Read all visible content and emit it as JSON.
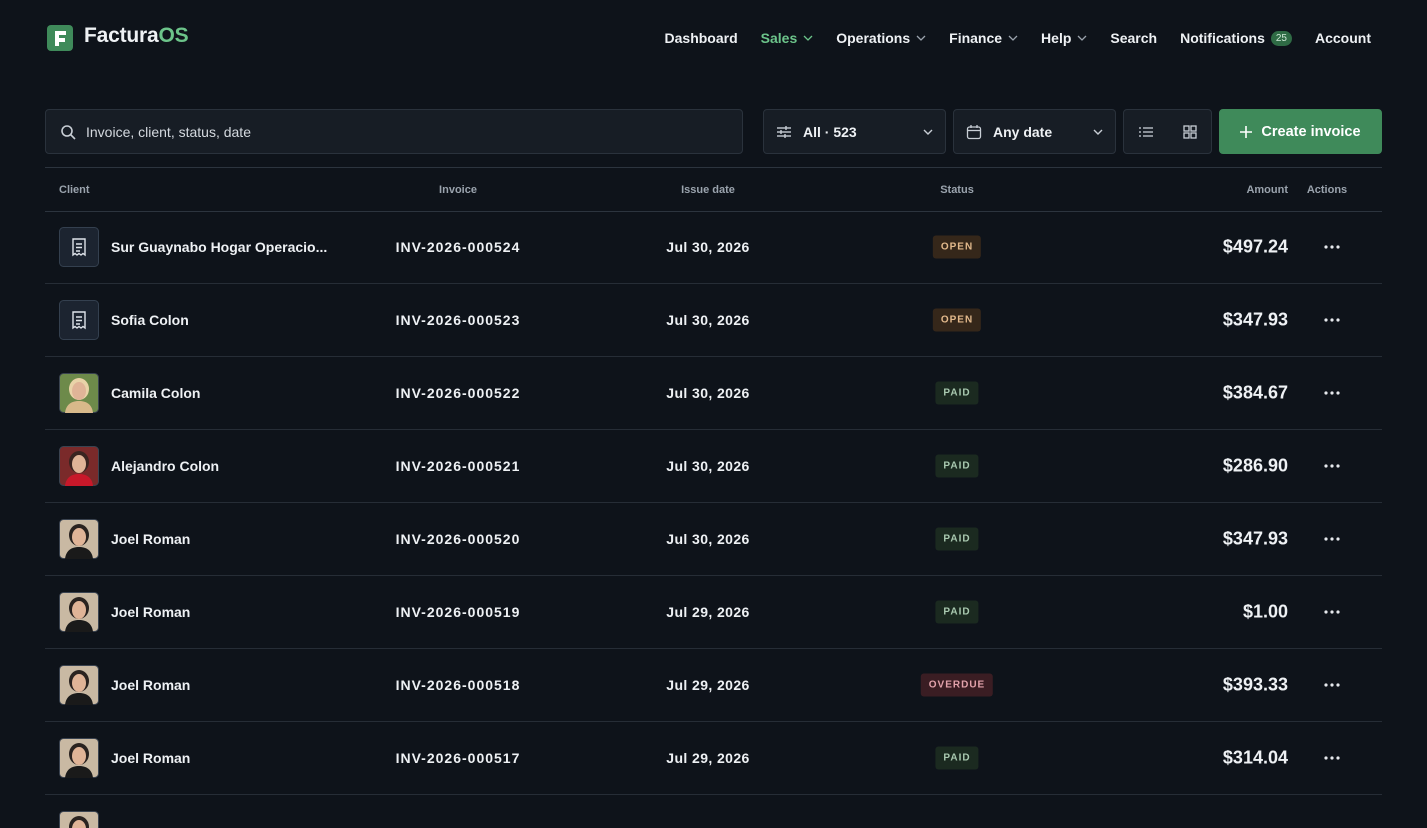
{
  "header": {
    "brand_main": "Factura",
    "brand_accent": "OS",
    "nav": [
      {
        "label": "Dashboard",
        "active": false,
        "dropdown": false
      },
      {
        "label": "Sales",
        "active": true,
        "dropdown": true
      },
      {
        "label": "Operations",
        "active": false,
        "dropdown": true
      },
      {
        "label": "Finance",
        "active": false,
        "dropdown": true
      },
      {
        "label": "Help",
        "active": false,
        "dropdown": true
      },
      {
        "label": "Search",
        "active": false,
        "dropdown": false
      },
      {
        "label": "Notifications",
        "active": false,
        "dropdown": false,
        "badge": 25
      },
      {
        "label": "Account",
        "active": false,
        "dropdown": false
      }
    ]
  },
  "toolbar": {
    "search_placeholder": "Invoice, client, status, date",
    "filter": "All · 523",
    "date_filter": "Any date",
    "create_button": "Create invoice"
  },
  "table": {
    "columns": [
      "Client",
      "Invoice",
      "Issue date",
      "Status",
      "Amount",
      "Actions"
    ],
    "rows": [
      {
        "avatar": "icon",
        "photo": 0,
        "client": "Sur Guaynabo Hogar Operacio...",
        "invoice": "INV-2026-000524",
        "date": "Jul 30, 2026",
        "status": "OPEN",
        "amount": "$497.24"
      },
      {
        "avatar": "icon",
        "photo": 0,
        "client": "Sofia Colon",
        "invoice": "INV-2026-000523",
        "date": "Jul 30, 2026",
        "status": "OPEN",
        "amount": "$347.93"
      },
      {
        "avatar": "photo",
        "photo": 1,
        "client": "Camila Colon",
        "invoice": "INV-2026-000522",
        "date": "Jul 30, 2026",
        "status": "PAID",
        "amount": "$384.67"
      },
      {
        "avatar": "photo",
        "photo": 2,
        "client": "Alejandro Colon",
        "invoice": "INV-2026-000521",
        "date": "Jul 30, 2026",
        "status": "PAID",
        "amount": "$286.90"
      },
      {
        "avatar": "photo",
        "photo": 3,
        "client": "Joel Roman",
        "invoice": "INV-2026-000520",
        "date": "Jul 30, 2026",
        "status": "PAID",
        "amount": "$347.93"
      },
      {
        "avatar": "photo",
        "photo": 3,
        "client": "Joel Roman",
        "invoice": "INV-2026-000519",
        "date": "Jul 29, 2026",
        "status": "PAID",
        "amount": "$1.00"
      },
      {
        "avatar": "photo",
        "photo": 3,
        "client": "Joel Roman",
        "invoice": "INV-2026-000518",
        "date": "Jul 29, 2026",
        "status": "OVERDUE",
        "amount": "$393.33"
      },
      {
        "avatar": "photo",
        "photo": 3,
        "client": "Joel Roman",
        "invoice": "INV-2026-000517",
        "date": "Jul 29, 2026",
        "status": "PAID",
        "amount": "$314.04"
      }
    ]
  }
}
